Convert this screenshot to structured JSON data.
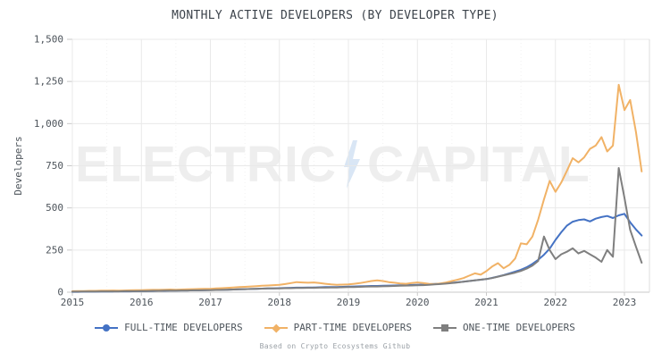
{
  "title": "MONTHLY ACTIVE DEVELOPERS (BY DEVELOPER TYPE)",
  "caption": "Based on Crypto Ecosystems Github",
  "watermark": {
    "left": "ELECTRIC",
    "right": "CAPITAL",
    "bolt_color": "#d9e6f5",
    "text_color": "#eeeeee"
  },
  "colors": {
    "full_time": "#4472c4",
    "part_time": "#f1b266",
    "one_time": "#7f7f7f",
    "grid": "#e9e9e9",
    "axis": "#c9c9c9",
    "tick_text": "#4d545b"
  },
  "chart_data": {
    "type": "line",
    "title": "MONTHLY ACTIVE DEVELOPERS (BY DEVELOPER TYPE)",
    "xlabel": "",
    "ylabel": "Developers",
    "ylim": [
      0,
      1500
    ],
    "yticks": [
      0,
      250,
      500,
      750,
      1000,
      1250,
      1500
    ],
    "ytick_labels": [
      "0",
      "250",
      "500",
      "750",
      "1,000",
      "1,250",
      "1,500"
    ],
    "xticks": [
      2015,
      2016,
      2017,
      2018,
      2019,
      2020,
      2021,
      2022,
      2023
    ],
    "x_start": 2015.0,
    "x_end": 2023.25,
    "x_step_months": 1,
    "grid": true,
    "legend_position": "bottom",
    "series": [
      {
        "name": "FULL-TIME DEVELOPERS",
        "color": "#4472c4",
        "marker": "circle",
        "values": [
          2,
          2,
          3,
          3,
          3,
          4,
          4,
          4,
          5,
          5,
          5,
          6,
          6,
          7,
          7,
          8,
          8,
          9,
          9,
          10,
          10,
          11,
          11,
          12,
          13,
          13,
          14,
          15,
          16,
          17,
          18,
          19,
          20,
          21,
          22,
          23,
          24,
          25,
          26,
          27,
          27,
          28,
          28,
          29,
          30,
          30,
          31,
          32,
          33,
          34,
          35,
          36,
          37,
          37,
          38,
          39,
          40,
          41,
          42,
          43,
          44,
          45,
          47,
          49,
          51,
          53,
          56,
          59,
          62,
          66,
          70,
          74,
          78,
          85,
          93,
          102,
          112,
          122,
          133,
          148,
          168,
          192,
          222,
          258,
          310,
          355,
          395,
          418,
          428,
          432,
          420,
          436,
          446,
          452,
          440,
          456,
          465,
          415,
          372,
          336
        ]
      },
      {
        "name": "PART-TIME DEVELOPERS",
        "color": "#f1b266",
        "marker": "diamond",
        "values": [
          6,
          7,
          7,
          8,
          8,
          9,
          9,
          10,
          9,
          10,
          11,
          12,
          12,
          13,
          14,
          14,
          15,
          16,
          15,
          16,
          17,
          18,
          19,
          20,
          20,
          22,
          24,
          26,
          28,
          30,
          32,
          34,
          36,
          38,
          40,
          42,
          44,
          48,
          54,
          60,
          58,
          56,
          58,
          54,
          50,
          46,
          44,
          45,
          46,
          50,
          54,
          60,
          66,
          70,
          66,
          60,
          56,
          52,
          50,
          54,
          58,
          54,
          50,
          48,
          52,
          58,
          66,
          74,
          84,
          98,
          112,
          104,
          125,
          152,
          172,
          142,
          162,
          200,
          290,
          284,
          330,
          430,
          550,
          660,
          595,
          650,
          720,
          795,
          770,
          800,
          850,
          870,
          920,
          835,
          870,
          1230,
          1080,
          1140,
          950,
          716
        ]
      },
      {
        "name": "ONE-TIME DEVELOPERS",
        "color": "#7f7f7f",
        "marker": "square",
        "values": [
          3,
          3,
          4,
          4,
          4,
          5,
          5,
          5,
          5,
          6,
          6,
          6,
          7,
          7,
          8,
          8,
          9,
          9,
          9,
          10,
          10,
          11,
          11,
          12,
          12,
          13,
          14,
          15,
          16,
          17,
          18,
          19,
          20,
          21,
          22,
          22,
          23,
          24,
          24,
          25,
          25,
          26,
          26,
          27,
          27,
          28,
          28,
          29,
          30,
          31,
          32,
          33,
          34,
          34,
          35,
          36,
          37,
          38,
          39,
          40,
          41,
          42,
          44,
          46,
          48,
          51,
          54,
          58,
          62,
          66,
          70,
          74,
          78,
          84,
          92,
          100,
          108,
          116,
          126,
          140,
          158,
          185,
          330,
          250,
          196,
          225,
          240,
          260,
          230,
          245,
          225,
          205,
          180,
          250,
          210,
          737,
          560,
          370,
          270,
          175
        ]
      }
    ]
  }
}
